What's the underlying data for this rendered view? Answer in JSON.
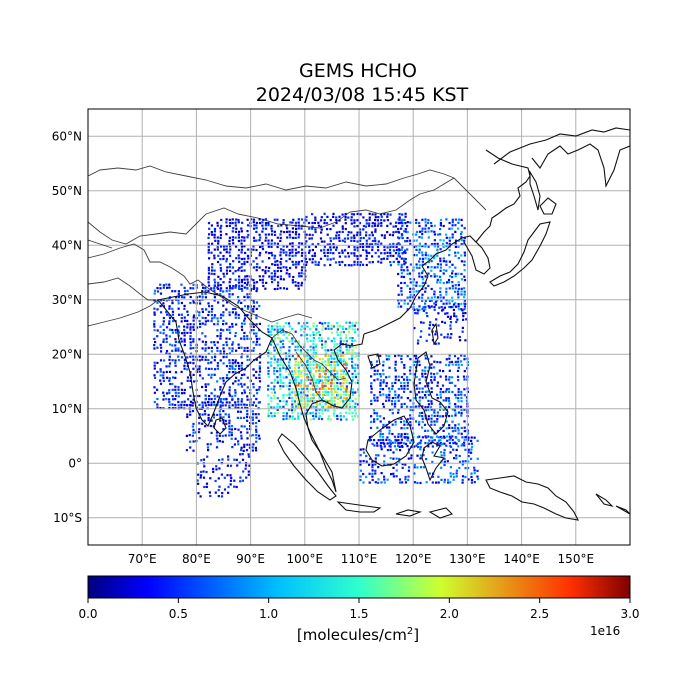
{
  "title": {
    "line1": "GEMS HCHO",
    "line2": "2024/03/08 15:45 KST"
  },
  "map": {
    "lon_range": [
      60,
      160
    ],
    "lat_range": [
      -15,
      65
    ],
    "lat_ticks": [
      {
        "value": 60,
        "label": "60°N"
      },
      {
        "value": 50,
        "label": "50°N"
      },
      {
        "value": 40,
        "label": "40°N"
      },
      {
        "value": 30,
        "label": "30°N"
      },
      {
        "value": 20,
        "label": "20°N"
      },
      {
        "value": 10,
        "label": "10°N"
      },
      {
        "value": 0,
        "label": "0°"
      },
      {
        "value": -10,
        "label": "10°S"
      }
    ],
    "lon_ticks": [
      {
        "value": 70,
        "label": "70°E"
      },
      {
        "value": 80,
        "label": "80°E"
      },
      {
        "value": 90,
        "label": "90°E"
      },
      {
        "value": 100,
        "label": "100°E"
      },
      {
        "value": 110,
        "label": "110°E"
      },
      {
        "value": 120,
        "label": "120°E"
      },
      {
        "value": 130,
        "label": "130°E"
      },
      {
        "value": 140,
        "label": "140°E"
      },
      {
        "value": 150,
        "label": "150°E"
      }
    ],
    "gridlines": true
  },
  "colorbar": {
    "colormap": "jet",
    "range": [
      0,
      3.0
    ],
    "ticks": [
      "0.0",
      "0.5",
      "1.0",
      "1.5",
      "2.0",
      "2.5",
      "3.0"
    ],
    "units_prefix": "[molecules/cm",
    "units_exp": "2",
    "units_suffix": "]",
    "offset_text": "1e16"
  }
}
